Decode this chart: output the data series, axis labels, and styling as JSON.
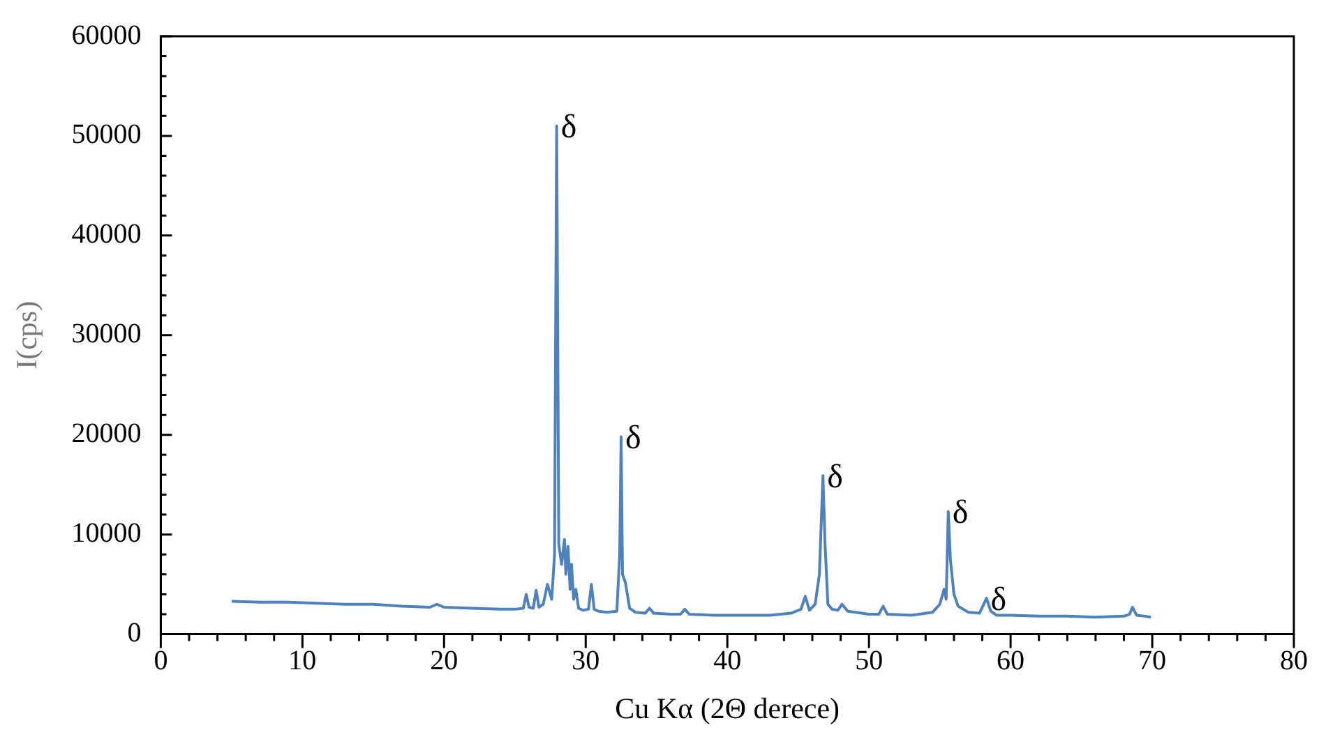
{
  "chart_data": {
    "type": "line",
    "xlabel": "Cu Kα (2Θ derece)",
    "ylabel": "I(cps)",
    "xlim": [
      0,
      80
    ],
    "xticks": [
      0,
      10,
      20,
      30,
      40,
      50,
      60,
      70,
      80
    ],
    "ylim": [
      0,
      60000
    ],
    "yticks": [
      0,
      10000,
      20000,
      30000,
      40000,
      50000,
      60000
    ],
    "grid": false,
    "legend": false,
    "marker": "none",
    "line_style": "solid",
    "series": [
      {
        "color": "#4f81bd",
        "x": [
          5,
          7,
          9,
          11,
          13,
          15,
          17,
          19,
          19.5,
          20,
          22,
          24,
          25,
          25.6,
          25.8,
          26,
          26.3,
          26.5,
          26.7,
          27,
          27.3,
          27.6,
          27.8,
          27.95,
          28.1,
          28.3,
          28.5,
          28.6,
          28.75,
          28.9,
          29,
          29.15,
          29.3,
          29.5,
          29.8,
          30.2,
          30.4,
          30.6,
          30.9,
          31.5,
          32.2,
          32.4,
          32.5,
          32.6,
          32.8,
          33.1,
          33.5,
          34.2,
          34.5,
          34.8,
          36,
          36.7,
          37,
          37.3,
          39,
          41,
          43,
          44.5,
          45.2,
          45.5,
          45.8,
          46.2,
          46.5,
          46.75,
          46.9,
          47.1,
          47.4,
          47.8,
          48.1,
          48.5,
          50,
          50.7,
          51,
          51.3,
          53,
          54.5,
          55,
          55.3,
          55.45,
          55.6,
          55.75,
          56,
          56.3,
          57,
          57.8,
          58.3,
          58.6,
          59,
          60,
          62,
          64,
          66,
          68,
          68.4,
          68.6,
          68.9,
          69.5,
          69.9
        ],
        "values": [
          3300,
          3200,
          3200,
          3100,
          3000,
          3000,
          2800,
          2700,
          3000,
          2700,
          2600,
          2500,
          2500,
          2600,
          4000,
          2700,
          2600,
          4400,
          2700,
          3000,
          5000,
          3500,
          8000,
          51000,
          9000,
          7000,
          9500,
          6000,
          8800,
          4500,
          7000,
          3500,
          4500,
          2600,
          2400,
          2500,
          5000,
          2500,
          2300,
          2200,
          2300,
          8000,
          19800,
          6000,
          5200,
          2600,
          2200,
          2100,
          2600,
          2100,
          2000,
          2000,
          2500,
          2000,
          1900,
          1900,
          1900,
          2100,
          2500,
          3800,
          2400,
          3000,
          6000,
          15900,
          9000,
          3000,
          2500,
          2400,
          3000,
          2300,
          2000,
          2000,
          2800,
          2000,
          1900,
          2200,
          3000,
          4500,
          3500,
          12300,
          7500,
          4000,
          2800,
          2200,
          2100,
          3600,
          2300,
          1900,
          1900,
          1800,
          1800,
          1700,
          1800,
          2000,
          2700,
          1900,
          1800,
          1700
        ]
      }
    ],
    "annotations": [
      {
        "text": "δ",
        "x": 27.95,
        "y": 51000
      },
      {
        "text": "δ",
        "x": 32.5,
        "y": 19800
      },
      {
        "text": "δ",
        "x": 46.75,
        "y": 15900
      },
      {
        "text": "δ",
        "x": 55.6,
        "y": 12300
      },
      {
        "text": "δ",
        "x": 58.3,
        "y": 3600
      }
    ]
  }
}
